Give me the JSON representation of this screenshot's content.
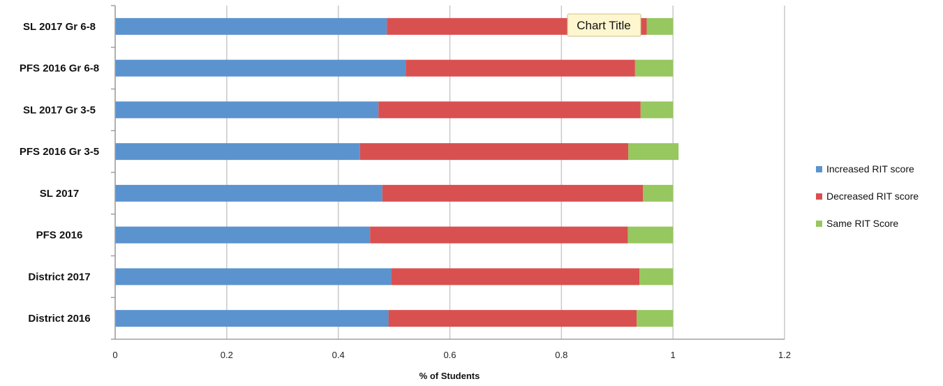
{
  "chart_data": {
    "type": "bar",
    "orientation": "horizontal",
    "stacked": true,
    "categories": [
      "SL 2017 Gr 6-8",
      "PFS 2016 Gr 6-8",
      "SL 2017 Gr 3-5",
      "PFS 2016 Gr 3-5",
      "SL 2017",
      "PFS 2016",
      "District 2017",
      "District 2016"
    ],
    "series": [
      {
        "name": "Increased RIT score",
        "color": "#5b93cf",
        "values": [
          0.487,
          0.521,
          0.472,
          0.439,
          0.479,
          0.457,
          0.495,
          0.49
        ]
      },
      {
        "name": "Decreased RIT score",
        "color": "#d95050",
        "values": [
          0.466,
          0.411,
          0.47,
          0.481,
          0.467,
          0.462,
          0.445,
          0.445
        ]
      },
      {
        "name": "Same RIT Score",
        "color": "#97c75f",
        "values": [
          0.047,
          0.068,
          0.058,
          0.09,
          0.054,
          0.081,
          0.06,
          0.065
        ]
      }
    ],
    "xlabel": "% of Students",
    "ylabel": "",
    "xlim": [
      0,
      1.2
    ],
    "xticks": [
      "0",
      "0.2",
      "0.4",
      "0.6",
      "0.8",
      "1",
      "1.2"
    ],
    "grid": "vertical",
    "legend_position": "right",
    "tooltip": "Chart Title"
  }
}
